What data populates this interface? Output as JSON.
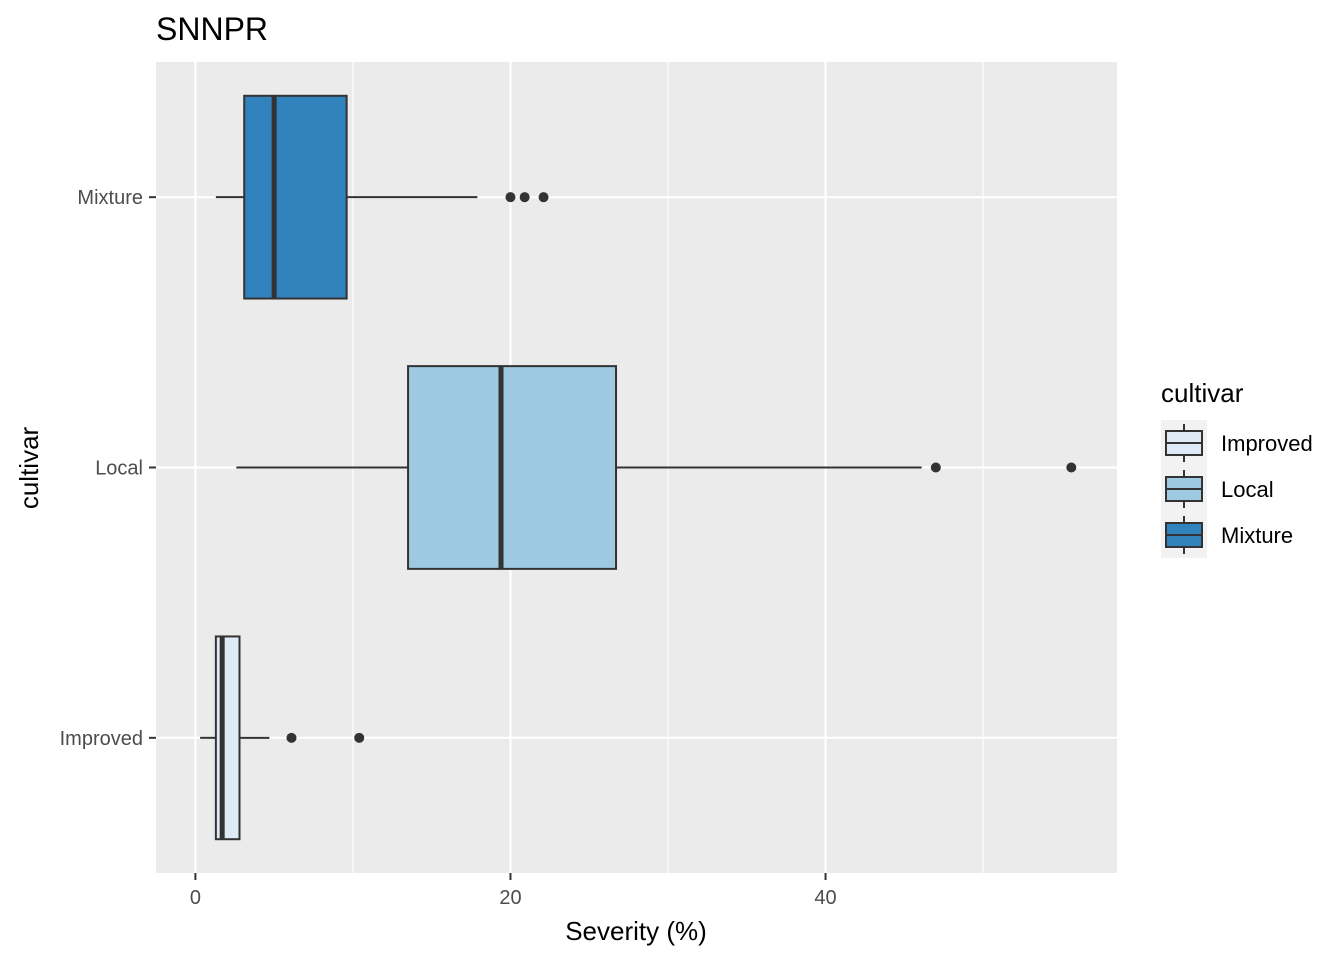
{
  "chart_data": {
    "type": "boxplot",
    "orientation": "horizontal",
    "title": "SNNPR",
    "xlabel": "Severity (%)",
    "ylabel": "cultivar",
    "xlim": [
      -2.5,
      58.5
    ],
    "x_ticks": [
      0,
      20,
      40
    ],
    "x_tick_labels": [
      "0",
      "20",
      "40"
    ],
    "grid": true,
    "categories": [
      "Mixture",
      "Local",
      "Improved"
    ],
    "boxes": [
      {
        "category": "Mixture",
        "whisker_low": 1.3,
        "q1": 3.1,
        "median": 5.0,
        "q3": 9.6,
        "whisker_high": 17.9,
        "outliers": [
          20.0,
          20.9,
          22.1
        ],
        "color": "#3182bd"
      },
      {
        "category": "Local",
        "whisker_low": 2.6,
        "q1": 13.5,
        "median": 19.4,
        "q3": 26.7,
        "whisker_high": 46.1,
        "outliers": [
          47.0,
          55.6
        ],
        "color": "#9ecae1"
      },
      {
        "category": "Improved",
        "whisker_low": 0.3,
        "q1": 1.3,
        "median": 1.7,
        "q3": 2.8,
        "whisker_high": 4.7,
        "outliers": [
          6.1,
          10.4
        ],
        "color": "#deebf7"
      }
    ],
    "legend": {
      "title": "cultivar",
      "position": "right",
      "items": [
        {
          "label": "Improved",
          "color": "#deebf7"
        },
        {
          "label": "Local",
          "color": "#9ecae1"
        },
        {
          "label": "Mixture",
          "color": "#3182bd"
        }
      ]
    },
    "colors": {
      "panel_bg": "#ebebeb",
      "grid": "#ffffff",
      "box_line": "#333333"
    }
  }
}
